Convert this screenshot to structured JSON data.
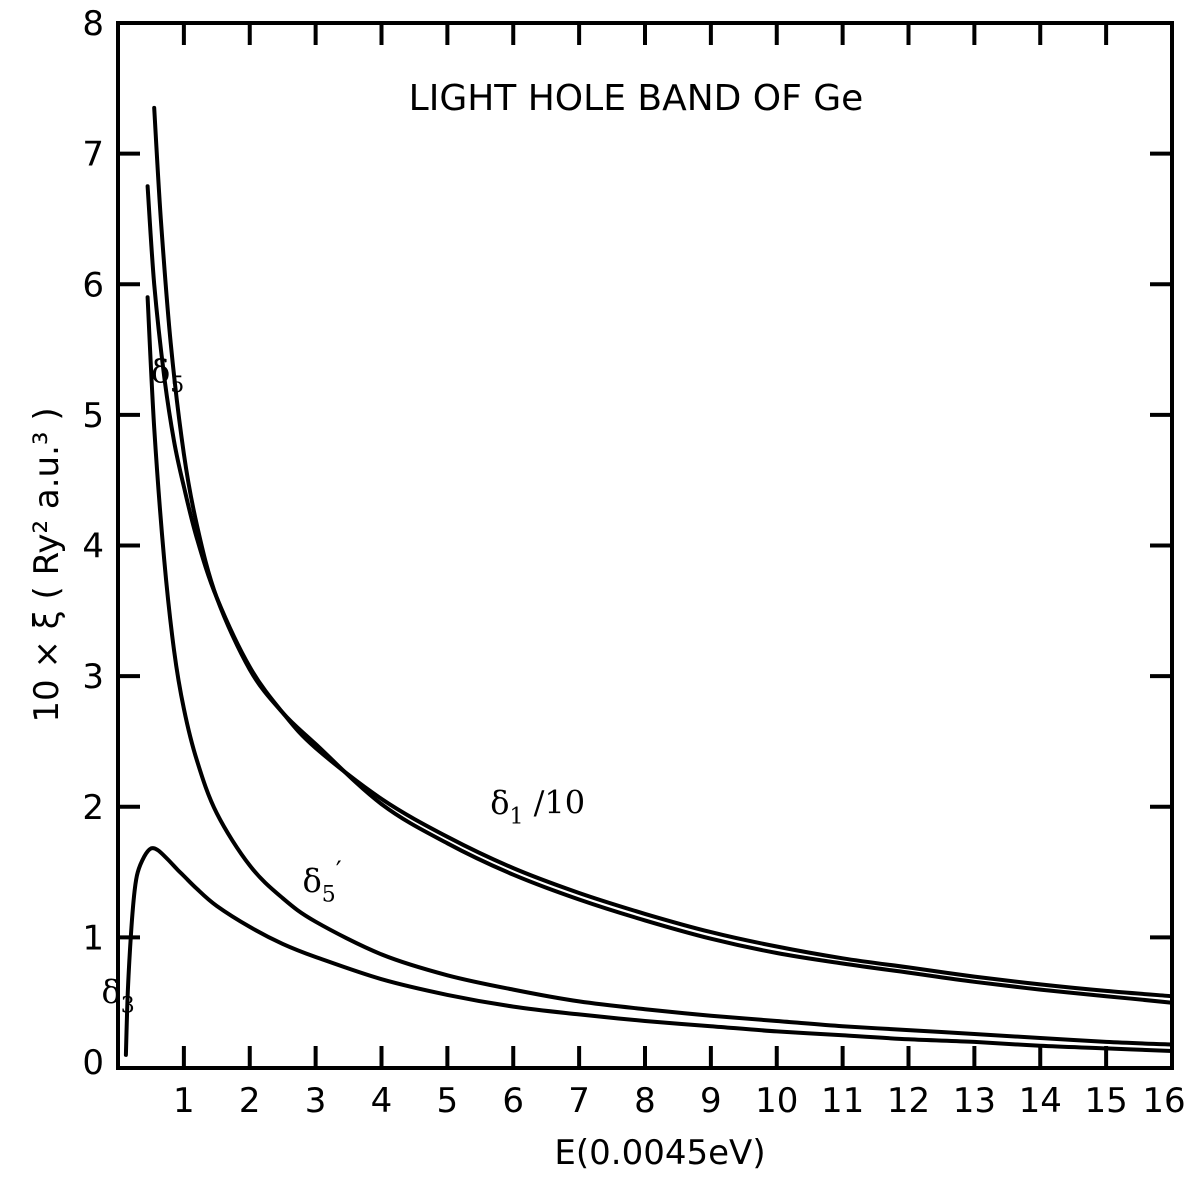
{
  "chart_data": {
    "type": "line",
    "title": "LIGHT HOLE BAND OF Ge",
    "xlabel": "E(0.0045eV)",
    "ylabel": "10 × ξ ( Ry² a.u.³ )",
    "xlim": [
      0,
      16
    ],
    "ylim": [
      0,
      8
    ],
    "x_ticks": [
      1,
      2,
      3,
      4,
      5,
      6,
      7,
      8,
      9,
      10,
      11,
      12,
      13,
      14,
      15,
      16
    ],
    "y_ticks": [
      0,
      1,
      2,
      3,
      4,
      5,
      6,
      7,
      8
    ],
    "grid": false,
    "series": [
      {
        "name": "δ5",
        "x": [
          0.55,
          0.65,
          0.8,
          1.0,
          1.2,
          1.5,
          2.0,
          2.5,
          3.0,
          4.0,
          5.0,
          6.0,
          7.0,
          8.0,
          9.0,
          10.0,
          11.0,
          12.0,
          13.0,
          14.0,
          15.0,
          16.0
        ],
        "y": [
          7.35,
          6.5,
          5.55,
          4.7,
          4.15,
          3.6,
          3.05,
          2.72,
          2.48,
          2.02,
          1.72,
          1.48,
          1.29,
          1.13,
          0.99,
          0.88,
          0.8,
          0.73,
          0.66,
          0.6,
          0.55,
          0.5
        ]
      },
      {
        "name": "δ1 /10",
        "x": [
          0.45,
          0.55,
          0.7,
          0.85,
          1.0,
          1.2,
          1.5,
          2.0,
          2.5,
          3.0,
          4.0,
          5.0,
          6.0,
          7.0,
          8.0,
          9.0,
          10.0,
          11.0,
          12.0,
          13.0,
          14.0,
          15.0,
          16.0
        ],
        "y": [
          6.75,
          6.0,
          5.3,
          4.8,
          4.45,
          4.05,
          3.6,
          3.07,
          2.72,
          2.45,
          2.06,
          1.77,
          1.53,
          1.34,
          1.18,
          1.04,
          0.93,
          0.84,
          0.77,
          0.7,
          0.64,
          0.59,
          0.55
        ]
      },
      {
        "name": "δ5'",
        "x": [
          0.45,
          0.55,
          0.7,
          0.85,
          1.0,
          1.2,
          1.5,
          2.0,
          2.5,
          3.0,
          4.0,
          5.0,
          6.0,
          7.0,
          8.0,
          9.0,
          10.0,
          11.0,
          12.0,
          13.0,
          14.0,
          15.0,
          16.0
        ],
        "y": [
          5.9,
          4.9,
          3.9,
          3.2,
          2.75,
          2.35,
          1.95,
          1.55,
          1.3,
          1.12,
          0.87,
          0.71,
          0.6,
          0.51,
          0.45,
          0.4,
          0.36,
          0.32,
          0.29,
          0.26,
          0.23,
          0.2,
          0.18
        ]
      },
      {
        "name": "δ3",
        "x": [
          0.12,
          0.15,
          0.2,
          0.25,
          0.3,
          0.4,
          0.5,
          0.6,
          0.75,
          0.9,
          1.0,
          1.2,
          1.5,
          2.0,
          2.5,
          3.0,
          4.0,
          5.0,
          6.0,
          7.0,
          8.0,
          9.0,
          10.0,
          11.0,
          12.0,
          13.0,
          14.0,
          15.0,
          16.0
        ],
        "y": [
          0.1,
          0.6,
          1.05,
          1.35,
          1.5,
          1.62,
          1.68,
          1.67,
          1.6,
          1.52,
          1.47,
          1.37,
          1.24,
          1.08,
          0.95,
          0.85,
          0.68,
          0.56,
          0.47,
          0.41,
          0.36,
          0.32,
          0.28,
          0.25,
          0.22,
          0.2,
          0.17,
          0.15,
          0.13
        ]
      }
    ],
    "annotations": [
      {
        "text": "δ5",
        "base": "δ",
        "sub": "5",
        "prime": "",
        "tail": "",
        "x": 0.5,
        "y": 5.25
      },
      {
        "text": "δ1 /10",
        "base": "δ",
        "sub": "1",
        "prime": "",
        "tail": " /10",
        "x": 5.65,
        "y": 1.95
      },
      {
        "text": "δ5'",
        "base": "δ",
        "sub": "5",
        "prime": "′",
        "tail": "",
        "x": 2.8,
        "y": 1.35
      },
      {
        "text": "δ3",
        "base": "δ",
        "sub": "3",
        "prime": "",
        "tail": "",
        "x": -0.25,
        "y": 0.5
      }
    ]
  }
}
